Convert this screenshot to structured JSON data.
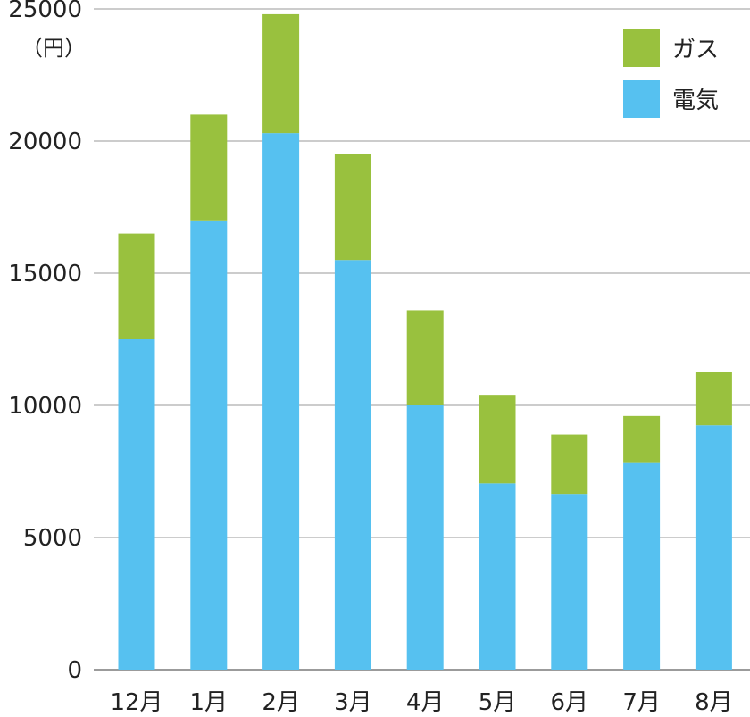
{
  "chart_data": {
    "type": "bar",
    "stacked": true,
    "categories": [
      "12月",
      "1月",
      "2月",
      "3月",
      "4月",
      "5月",
      "6月",
      "7月",
      "8月"
    ],
    "series": [
      {
        "name": "電気",
        "color": "#56c1f0",
        "values": [
          12500,
          17000,
          20300,
          15500,
          10000,
          7050,
          6650,
          7850,
          9250
        ]
      },
      {
        "name": "ガス",
        "color": "#99c13e",
        "values": [
          4000,
          4000,
          4500,
          4000,
          3600,
          3350,
          2250,
          1750,
          2000
        ]
      }
    ],
    "ylabel": "（円）",
    "ylim": [
      0,
      25000
    ],
    "yticks": [
      0,
      5000,
      10000,
      15000,
      20000,
      25000
    ],
    "grid": true,
    "legend": {
      "placement": "top-right",
      "items": [
        {
          "label": "ガス",
          "color": "#99c13e"
        },
        {
          "label": "電気",
          "color": "#56c1f0"
        }
      ]
    }
  }
}
